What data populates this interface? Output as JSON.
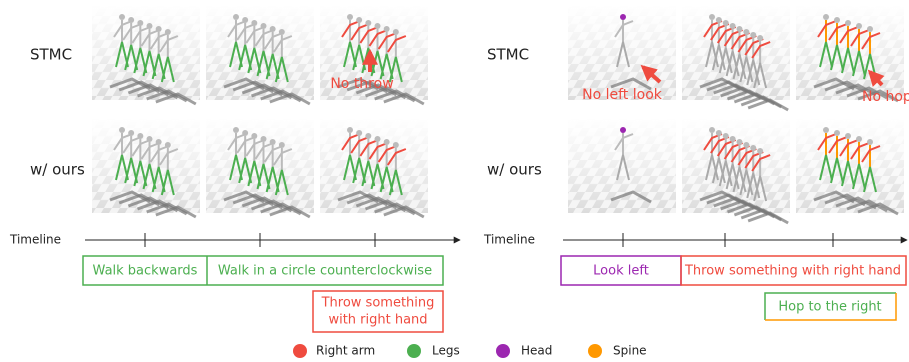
{
  "left": {
    "rows": [
      "STMC",
      "w/ ours"
    ],
    "annotation": "No throw",
    "timeline": "Timeline",
    "boxes": {
      "walk_backwards": "Walk backwards",
      "walk_circle": "Walk in a circle counterclockwise",
      "throw": [
        "Throw something",
        "with right hand"
      ]
    }
  },
  "right": {
    "rows": [
      "STMC",
      "w/ ours"
    ],
    "annotations": [
      "No left look",
      "No hop"
    ],
    "timeline": "Timeline",
    "boxes": {
      "look": "Look left",
      "throw": "Throw something with right hand",
      "hop": "Hop to the right"
    }
  },
  "legend": [
    "Right arm",
    "Legs",
    "Head",
    "Spine"
  ]
}
